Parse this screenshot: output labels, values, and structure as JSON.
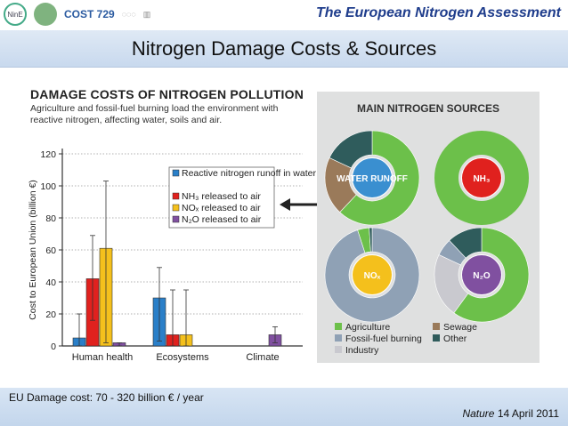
{
  "header": {
    "assessment_title": "The European Nitrogen Assessment",
    "logos": [
      "NinE",
      "COST 729"
    ]
  },
  "slide_title": "Nitrogen Damage Costs & Sources",
  "figure": {
    "title": "DAMAGE COSTS OF NITROGEN POLLUTION",
    "subtitle": "Agriculture and fossil-fuel burning load the environment with reactive nitrogen, affecting water, soils and air."
  },
  "chart_data": [
    {
      "type": "bar",
      "ylabel": "Cost to European Union (billion €)",
      "ylim": [
        0,
        120
      ],
      "yticks": [
        0,
        20,
        40,
        60,
        80,
        100,
        120
      ],
      "categories": [
        "Human health",
        "Ecosystems",
        "Climate"
      ],
      "series": [
        {
          "name": "Reactive nitrogen runoff in water",
          "color": "#2a7fc8",
          "values": [
            5,
            30,
            0
          ],
          "err_low": [
            0,
            3,
            0
          ],
          "err_high": [
            20,
            49,
            0
          ]
        },
        {
          "name": "NH₃ released to air",
          "color": "#e0211e",
          "values": [
            42,
            7,
            0
          ],
          "err_low": [
            16,
            0,
            0
          ],
          "err_high": [
            69,
            35,
            0
          ]
        },
        {
          "name": "NOₓ released to air",
          "color": "#f4c01c",
          "values": [
            61,
            7,
            0
          ],
          "err_low": [
            2,
            0,
            0
          ],
          "err_high": [
            103,
            35,
            0
          ]
        },
        {
          "name": "N₂O released to air",
          "color": "#8050a0",
          "values": [
            2,
            0,
            7
          ],
          "err_low": [
            0,
            0,
            2
          ],
          "err_high": [
            2,
            0,
            12
          ]
        }
      ]
    },
    {
      "type": "pie",
      "title": "WATER RUNOFF",
      "legend": [
        "Agriculture",
        "Fossil-fuel burning",
        "Industry",
        "Sewage",
        "Other"
      ],
      "slices": [
        {
          "label": "Agriculture",
          "value": 62,
          "color": "#6cc04a"
        },
        {
          "label": "Sewage",
          "value": 20,
          "color": "#9a7a5a"
        },
        {
          "label": "Other",
          "value": 18,
          "color": "#2f5c5c"
        }
      ]
    },
    {
      "type": "pie",
      "title": "NH₃",
      "slices": [
        {
          "label": "Agriculture",
          "value": 100,
          "color": "#6cc04a"
        }
      ]
    },
    {
      "type": "pie",
      "title": "NOₓ",
      "slices": [
        {
          "label": "Fossil-fuel burning",
          "value": 95,
          "color": "#8fa1b5"
        },
        {
          "label": "Agriculture",
          "value": 4,
          "color": "#6cc04a"
        },
        {
          "label": "Other",
          "value": 1,
          "color": "#2f5c5c"
        }
      ]
    },
    {
      "type": "pie",
      "title": "N₂O",
      "slices": [
        {
          "label": "Agriculture",
          "value": 60,
          "color": "#6cc04a"
        },
        {
          "label": "Industry",
          "value": 22,
          "color": "#c9c9cf"
        },
        {
          "label": "Fossil-fuel burning",
          "value": 6,
          "color": "#8fa1b5"
        },
        {
          "label": "Other",
          "value": 12,
          "color": "#2f5c5c"
        }
      ]
    }
  ],
  "sources_title": "MAIN NITROGEN SOURCES",
  "footer": {
    "eu_cost": "EU Damage cost: 70 - 320 billion € / year",
    "journal": "Nature",
    "date": "14 April 2011"
  },
  "colors": {
    "title_blue": "#1f3d8c",
    "bar_blue": "#2a7fc8",
    "bar_red": "#e0211e",
    "bar_yellow": "#f4c01c",
    "bar_purple": "#8050a0",
    "agri_green": "#6cc04a"
  }
}
